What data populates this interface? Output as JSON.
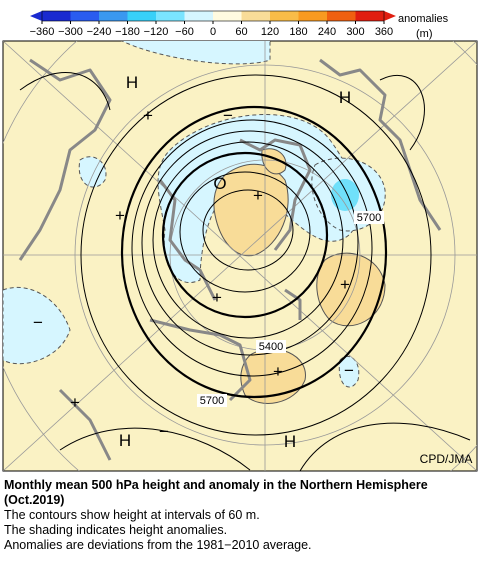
{
  "legend": {
    "title": "anomalies",
    "unit": "(m)",
    "colors": [
      "#1a2ad0",
      "#2a5cf0",
      "#3a98f0",
      "#38d0f8",
      "#7ae4ff",
      "#d6f6ff",
      "#fffbe0",
      "#f8dc98",
      "#f8bc48",
      "#f89a20",
      "#f06010",
      "#e01e10"
    ],
    "ticks": [
      {
        "value": -360,
        "label": "−360"
      },
      {
        "value": -300,
        "label": "−300"
      },
      {
        "value": -240,
        "label": "−240"
      },
      {
        "value": -180,
        "label": "−180"
      },
      {
        "value": -120,
        "label": "−120"
      },
      {
        "value": -60,
        "label": "−60"
      },
      0,
      60,
      120,
      180,
      240,
      300,
      360
    ]
  },
  "map": {
    "labels": [
      "H",
      "H",
      "H",
      "H",
      "+",
      "+",
      "+",
      "+",
      "+",
      "+",
      "+",
      "−",
      "−",
      "−",
      "−",
      "O"
    ],
    "contour_labels": [
      "5700",
      "5400",
      "5700"
    ],
    "credit": "CPD/JMA"
  },
  "caption": {
    "title": "Monthly mean 500 hPa height and anomaly in the Northern Hemisphere (Oct.2019)",
    "lines": [
      "The contours show height at intervals of 60 m.",
      "The shading indicates height anomalies.",
      "Anomalies are deviations from the 1981−2010 average."
    ]
  }
}
